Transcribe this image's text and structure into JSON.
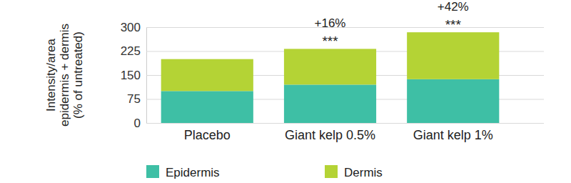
{
  "chart_data": {
    "type": "bar",
    "stacked": true,
    "y_label": [
      "Intensity/area",
      "epidermis + dermis",
      "(% of untreated)"
    ],
    "categories": [
      "Placebo",
      "Giant kelp 0.5%",
      "Giant kelp 1%"
    ],
    "series": [
      {
        "name": "Epidermis",
        "color": "#3ebfa5",
        "values": [
          100,
          120,
          137
        ]
      },
      {
        "name": "Dermis",
        "color": "#b4d335",
        "values": [
          100,
          112,
          147
        ]
      }
    ],
    "annotations": [
      {
        "category": "Giant kelp 0.5%",
        "label": "+16%",
        "significance": "***"
      },
      {
        "category": "Giant kelp 1%",
        "label": "+42%",
        "significance": "***"
      }
    ],
    "ylim": [
      0,
      300
    ],
    "yticks": [
      0,
      75,
      150,
      225,
      300
    ],
    "grid": true,
    "legend": "bottom-left"
  }
}
